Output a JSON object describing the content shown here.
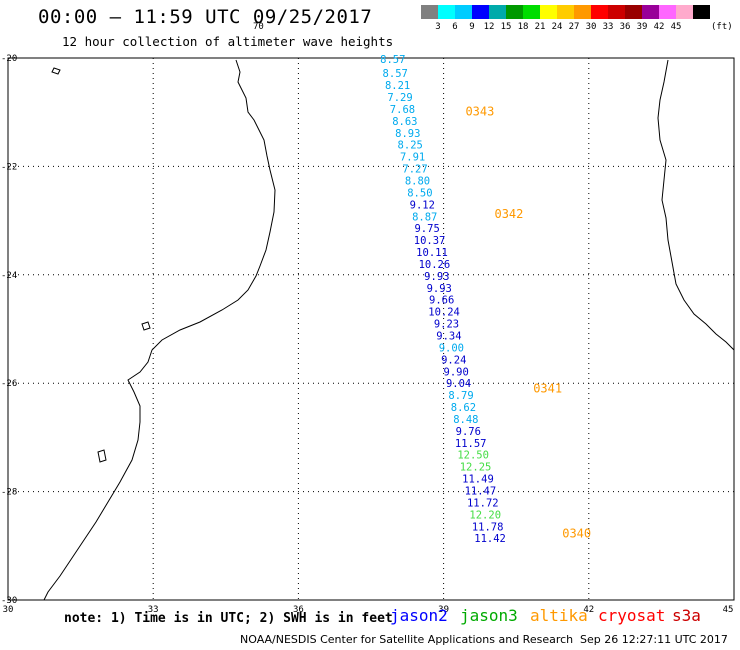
{
  "header": {
    "title": "00:00 – 11:59 UTC 09/25/2017",
    "subtitle": "12 hour collection of altimeter wave heights"
  },
  "scale": {
    "unit": "(ft)",
    "labels": [
      "3",
      "6",
      "9",
      "12",
      "15",
      "18",
      "21",
      "24",
      "27",
      "30",
      "33",
      "36",
      "39",
      "42",
      "45",
      "70"
    ],
    "colors": [
      "#808080",
      "#00ffff",
      "#00ccff",
      "#0000ff",
      "#00aaaa",
      "#009900",
      "#00dd00",
      "#ffff00",
      "#ffcc00",
      "#ff9900",
      "#ff0000",
      "#cc0000",
      "#990000",
      "#990099",
      "#ff66ff",
      "#ffaacc",
      "#000000"
    ]
  },
  "axes": {
    "lon_min": 30,
    "lon_max": 45,
    "lat_min": -30,
    "lat_max": -20,
    "x_ticks": [
      "30",
      "33",
      "36",
      "39",
      "42",
      "45"
    ],
    "y_ticks": [
      "-20",
      "-22",
      "-24",
      "-26",
      "-28",
      "-30"
    ]
  },
  "track": [
    {
      "lon": 37.95,
      "lat": -20.02,
      "v": "8.57",
      "c": "#00aaee"
    },
    {
      "lon": 38.0,
      "lat": -20.28,
      "v": "8.57",
      "c": "#00aaee"
    },
    {
      "lon": 38.05,
      "lat": -20.5,
      "v": "8.21",
      "c": "#00aaee"
    },
    {
      "lon": 38.1,
      "lat": -20.72,
      "v": "7.29",
      "c": "#00aaee"
    },
    {
      "lon": 38.15,
      "lat": -20.94,
      "v": "7.68",
      "c": "#00aaee"
    },
    {
      "lon": 38.2,
      "lat": -21.16,
      "v": "8.63",
      "c": "#00aaee"
    },
    {
      "lon": 38.26,
      "lat": -21.38,
      "v": "8.93",
      "c": "#00aaee"
    },
    {
      "lon": 38.31,
      "lat": -21.6,
      "v": "8.25",
      "c": "#00aaee"
    },
    {
      "lon": 38.36,
      "lat": -21.82,
      "v": "7.91",
      "c": "#00aaee"
    },
    {
      "lon": 38.41,
      "lat": -22.04,
      "v": "7.27",
      "c": "#00aaee"
    },
    {
      "lon": 38.46,
      "lat": -22.26,
      "v": "8.80",
      "c": "#00aaee"
    },
    {
      "lon": 38.51,
      "lat": -22.48,
      "v": "8.50",
      "c": "#00aaee"
    },
    {
      "lon": 38.56,
      "lat": -22.7,
      "v": "9.12",
      "c": "#0000cc"
    },
    {
      "lon": 38.61,
      "lat": -22.92,
      "v": "8.87",
      "c": "#00aaee"
    },
    {
      "lon": 38.66,
      "lat": -23.14,
      "v": "9.75",
      "c": "#0000cc"
    },
    {
      "lon": 38.71,
      "lat": -23.36,
      "v": "10.37",
      "c": "#0000cc"
    },
    {
      "lon": 38.76,
      "lat": -23.58,
      "v": "10.11",
      "c": "#0000cc"
    },
    {
      "lon": 38.81,
      "lat": -23.8,
      "v": "10.26",
      "c": "#0000cc"
    },
    {
      "lon": 38.86,
      "lat": -24.02,
      "v": "9.93",
      "c": "#0000cc"
    },
    {
      "lon": 38.91,
      "lat": -24.24,
      "v": "9.93",
      "c": "#0000cc"
    },
    {
      "lon": 38.96,
      "lat": -24.46,
      "v": "9.66",
      "c": "#0000cc"
    },
    {
      "lon": 39.01,
      "lat": -24.68,
      "v": "10.24",
      "c": "#0000cc"
    },
    {
      "lon": 39.06,
      "lat": -24.9,
      "v": "9.23",
      "c": "#0000cc"
    },
    {
      "lon": 39.11,
      "lat": -25.12,
      "v": "9.34",
      "c": "#0000cc"
    },
    {
      "lon": 39.16,
      "lat": -25.34,
      "v": "9.00",
      "c": "#00aaee"
    },
    {
      "lon": 39.21,
      "lat": -25.56,
      "v": "9.24",
      "c": "#0000cc"
    },
    {
      "lon": 39.26,
      "lat": -25.78,
      "v": "9.90",
      "c": "#0000cc"
    },
    {
      "lon": 39.31,
      "lat": -26.0,
      "v": "9.04",
      "c": "#0000cc"
    },
    {
      "lon": 39.36,
      "lat": -26.22,
      "v": "8.79",
      "c": "#00aaee"
    },
    {
      "lon": 39.41,
      "lat": -26.44,
      "v": "8.62",
      "c": "#00aaee"
    },
    {
      "lon": 39.46,
      "lat": -26.66,
      "v": "8.48",
      "c": "#00aaee"
    },
    {
      "lon": 39.51,
      "lat": -26.88,
      "v": "9.76",
      "c": "#0000cc"
    },
    {
      "lon": 39.56,
      "lat": -27.1,
      "v": "11.57",
      "c": "#0000cc"
    },
    {
      "lon": 39.61,
      "lat": -27.32,
      "v": "12.50",
      "c": "#44dd44"
    },
    {
      "lon": 39.66,
      "lat": -27.54,
      "v": "12.25",
      "c": "#44dd44"
    },
    {
      "lon": 39.71,
      "lat": -27.76,
      "v": "11.49",
      "c": "#0000cc"
    },
    {
      "lon": 39.76,
      "lat": -27.98,
      "v": "11.47",
      "c": "#0000cc"
    },
    {
      "lon": 39.81,
      "lat": -28.2,
      "v": "11.72",
      "c": "#0000cc"
    },
    {
      "lon": 39.86,
      "lat": -28.42,
      "v": "12.20",
      "c": "#44dd44"
    },
    {
      "lon": 39.91,
      "lat": -28.64,
      "v": "11.78",
      "c": "#0000cc"
    },
    {
      "lon": 39.96,
      "lat": -28.86,
      "v": "11.42",
      "c": "#0000cc"
    }
  ],
  "times": [
    {
      "lon": 39.75,
      "lat": -20.97,
      "text": "0343"
    },
    {
      "lon": 40.35,
      "lat": -22.86,
      "text": "0342"
    },
    {
      "lon": 41.15,
      "lat": -26.08,
      "text": "0341"
    },
    {
      "lon": 41.75,
      "lat": -28.75,
      "text": "0340"
    }
  ],
  "footer": {
    "note": "note: 1) Time is in UTC; 2) SWH is in feet",
    "legend": [
      {
        "name": "jason2",
        "color": "#0000ff"
      },
      {
        "name": "jason3",
        "color": "#00aa00"
      },
      {
        "name": "altika",
        "color": "#ff9900"
      },
      {
        "name": "cryosat",
        "color": "#ff0000"
      },
      {
        "name": "s3a",
        "color": "#cc0000"
      }
    ],
    "credit": "NOAA/NESDIS Center for Satellite Applications and Research",
    "timestamp": "Sep 26 12:27:11 UTC 2017"
  }
}
